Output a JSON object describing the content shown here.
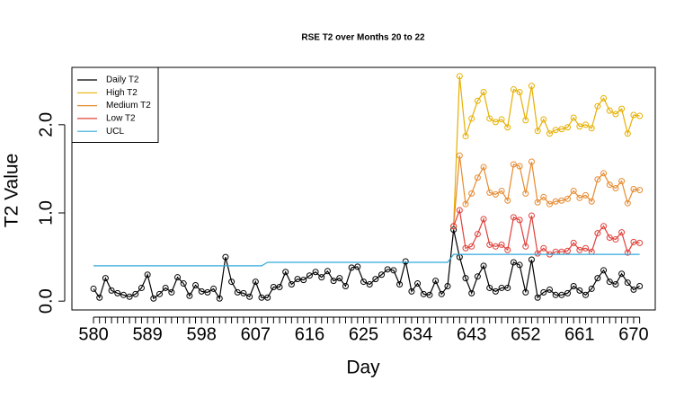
{
  "chart_data": {
    "type": "line",
    "title": "RSE T2 over Months 20 to 22",
    "x_label": "Day",
    "y_label": "T2 Value",
    "x": [
      580,
      581,
      582,
      583,
      584,
      585,
      586,
      587,
      588,
      589,
      590,
      591,
      592,
      593,
      594,
      595,
      596,
      597,
      598,
      599,
      600,
      601,
      602,
      603,
      604,
      605,
      606,
      607,
      608,
      609,
      610,
      611,
      612,
      613,
      614,
      615,
      616,
      617,
      618,
      619,
      620,
      621,
      622,
      623,
      624,
      625,
      626,
      627,
      628,
      629,
      630,
      631,
      632,
      633,
      634,
      635,
      636,
      637,
      638,
      639,
      640,
      641,
      642,
      643,
      644,
      645,
      646,
      647,
      648,
      649,
      650,
      651,
      652,
      653,
      654,
      655,
      656,
      657,
      658,
      659,
      660,
      661,
      662,
      663,
      664,
      665,
      666,
      667,
      668,
      669,
      670,
      671
    ],
    "xlim": [
      576.4,
      673.6
    ],
    "xticks": [
      580,
      589,
      598,
      607,
      616,
      625,
      634,
      643,
      652,
      661,
      670
    ],
    "ylim": [
      -0.1,
      2.65
    ],
    "yticks": [
      {
        "value": 0,
        "label": "0.0"
      },
      {
        "value": 1,
        "label": "1.0"
      },
      {
        "value": 2,
        "label": "2.0"
      }
    ],
    "legend": "topleft",
    "series": [
      {
        "name": "Daily T2",
        "color": "#000000",
        "points": true,
        "values": [
          0.14,
          0.04,
          0.26,
          0.12,
          0.09,
          0.07,
          0.05,
          0.08,
          0.15,
          0.3,
          0.03,
          0.08,
          0.15,
          0.1,
          0.27,
          0.2,
          0.06,
          0.18,
          0.11,
          0.1,
          0.14,
          0.03,
          0.5,
          0.22,
          0.1,
          0.09,
          0.05,
          0.22,
          0.04,
          0.04,
          0.16,
          0.16,
          0.33,
          0.19,
          0.25,
          0.24,
          0.29,
          0.33,
          0.27,
          0.34,
          0.23,
          0.26,
          0.17,
          0.38,
          0.39,
          0.22,
          0.19,
          0.25,
          0.3,
          0.36,
          0.35,
          0.19,
          0.45,
          0.11,
          0.2,
          0.08,
          0.07,
          0.23,
          0.08,
          0.17,
          0.81,
          0.5,
          0.26,
          0.09,
          0.28,
          0.4,
          0.15,
          0.11,
          0.15,
          0.15,
          0.44,
          0.41,
          0.1,
          0.47,
          0.04,
          0.1,
          0.13,
          0.07,
          0.07,
          0.09,
          0.17,
          0.12,
          0.07,
          0.14,
          0.26,
          0.35,
          0.22,
          0.19,
          0.31,
          0.21,
          0.13,
          0.17
        ]
      },
      {
        "name": "High T2",
        "color": "#e6b000",
        "points": true,
        "values": [
          null,
          null,
          null,
          null,
          null,
          null,
          null,
          null,
          null,
          null,
          null,
          null,
          null,
          null,
          null,
          null,
          null,
          null,
          null,
          null,
          null,
          null,
          null,
          null,
          null,
          null,
          null,
          null,
          null,
          null,
          null,
          null,
          null,
          null,
          null,
          null,
          null,
          null,
          null,
          null,
          null,
          null,
          null,
          null,
          null,
          null,
          null,
          null,
          null,
          null,
          null,
          null,
          null,
          null,
          null,
          null,
          null,
          null,
          null,
          null,
          0.85,
          2.55,
          1.87,
          2.07,
          2.27,
          2.37,
          2.07,
          2.03,
          2.06,
          1.97,
          2.4,
          2.37,
          2.05,
          2.44,
          1.93,
          2.06,
          1.9,
          1.94,
          1.95,
          1.97,
          2.08,
          1.98,
          2.0,
          1.96,
          2.21,
          2.3,
          2.16,
          2.12,
          2.18,
          1.9,
          2.11,
          2.1
        ]
      },
      {
        "name": "Medium T2",
        "color": "#e68a2e",
        "points": true,
        "values": [
          null,
          null,
          null,
          null,
          null,
          null,
          null,
          null,
          null,
          null,
          null,
          null,
          null,
          null,
          null,
          null,
          null,
          null,
          null,
          null,
          null,
          null,
          null,
          null,
          null,
          null,
          null,
          null,
          null,
          null,
          null,
          null,
          null,
          null,
          null,
          null,
          null,
          null,
          null,
          null,
          null,
          null,
          null,
          null,
          null,
          null,
          null,
          null,
          null,
          null,
          null,
          null,
          null,
          null,
          null,
          null,
          null,
          null,
          null,
          null,
          0.85,
          1.65,
          1.1,
          1.22,
          1.4,
          1.52,
          1.23,
          1.21,
          1.25,
          1.14,
          1.55,
          1.53,
          1.22,
          1.58,
          1.12,
          1.18,
          1.1,
          1.13,
          1.14,
          1.16,
          1.25,
          1.17,
          1.2,
          1.13,
          1.38,
          1.45,
          1.32,
          1.28,
          1.36,
          1.11,
          1.27,
          1.26
        ]
      },
      {
        "name": "Low T2",
        "color": "#e0403a",
        "points": true,
        "values": [
          null,
          null,
          null,
          null,
          null,
          null,
          null,
          null,
          null,
          null,
          null,
          null,
          null,
          null,
          null,
          null,
          null,
          null,
          null,
          null,
          null,
          null,
          null,
          null,
          null,
          null,
          null,
          null,
          null,
          null,
          null,
          null,
          null,
          null,
          null,
          null,
          null,
          null,
          null,
          null,
          null,
          null,
          null,
          null,
          null,
          null,
          null,
          null,
          null,
          null,
          null,
          null,
          null,
          null,
          null,
          null,
          null,
          null,
          null,
          null,
          0.85,
          1.03,
          0.6,
          0.62,
          0.76,
          0.93,
          0.64,
          0.62,
          0.64,
          0.58,
          0.95,
          0.92,
          0.62,
          0.97,
          0.54,
          0.6,
          0.53,
          0.56,
          0.56,
          0.57,
          0.66,
          0.58,
          0.6,
          0.56,
          0.77,
          0.85,
          0.72,
          0.7,
          0.78,
          0.55,
          0.67,
          0.66
        ]
      },
      {
        "name": "UCL",
        "color": "#33aadd",
        "points": false,
        "values": [
          0.4,
          0.4,
          0.4,
          0.4,
          0.4,
          0.4,
          0.4,
          0.4,
          0.4,
          0.4,
          0.4,
          0.4,
          0.4,
          0.4,
          0.4,
          0.4,
          0.4,
          0.4,
          0.4,
          0.4,
          0.4,
          0.4,
          0.4,
          0.4,
          0.4,
          0.4,
          0.4,
          0.4,
          0.4,
          0.44,
          0.44,
          0.44,
          0.44,
          0.44,
          0.44,
          0.44,
          0.44,
          0.44,
          0.44,
          0.44,
          0.44,
          0.44,
          0.44,
          0.44,
          0.44,
          0.44,
          0.44,
          0.44,
          0.44,
          0.44,
          0.44,
          0.44,
          0.44,
          0.44,
          0.44,
          0.44,
          0.44,
          0.44,
          0.44,
          0.44,
          0.53,
          0.53,
          0.53,
          0.53,
          0.53,
          0.53,
          0.53,
          0.53,
          0.53,
          0.53,
          0.53,
          0.53,
          0.53,
          0.53,
          0.53,
          0.53,
          0.53,
          0.53,
          0.53,
          0.53,
          0.53,
          0.53,
          0.53,
          0.53,
          0.53,
          0.53,
          0.53,
          0.53,
          0.53,
          0.53,
          0.53,
          0.53
        ]
      }
    ]
  }
}
